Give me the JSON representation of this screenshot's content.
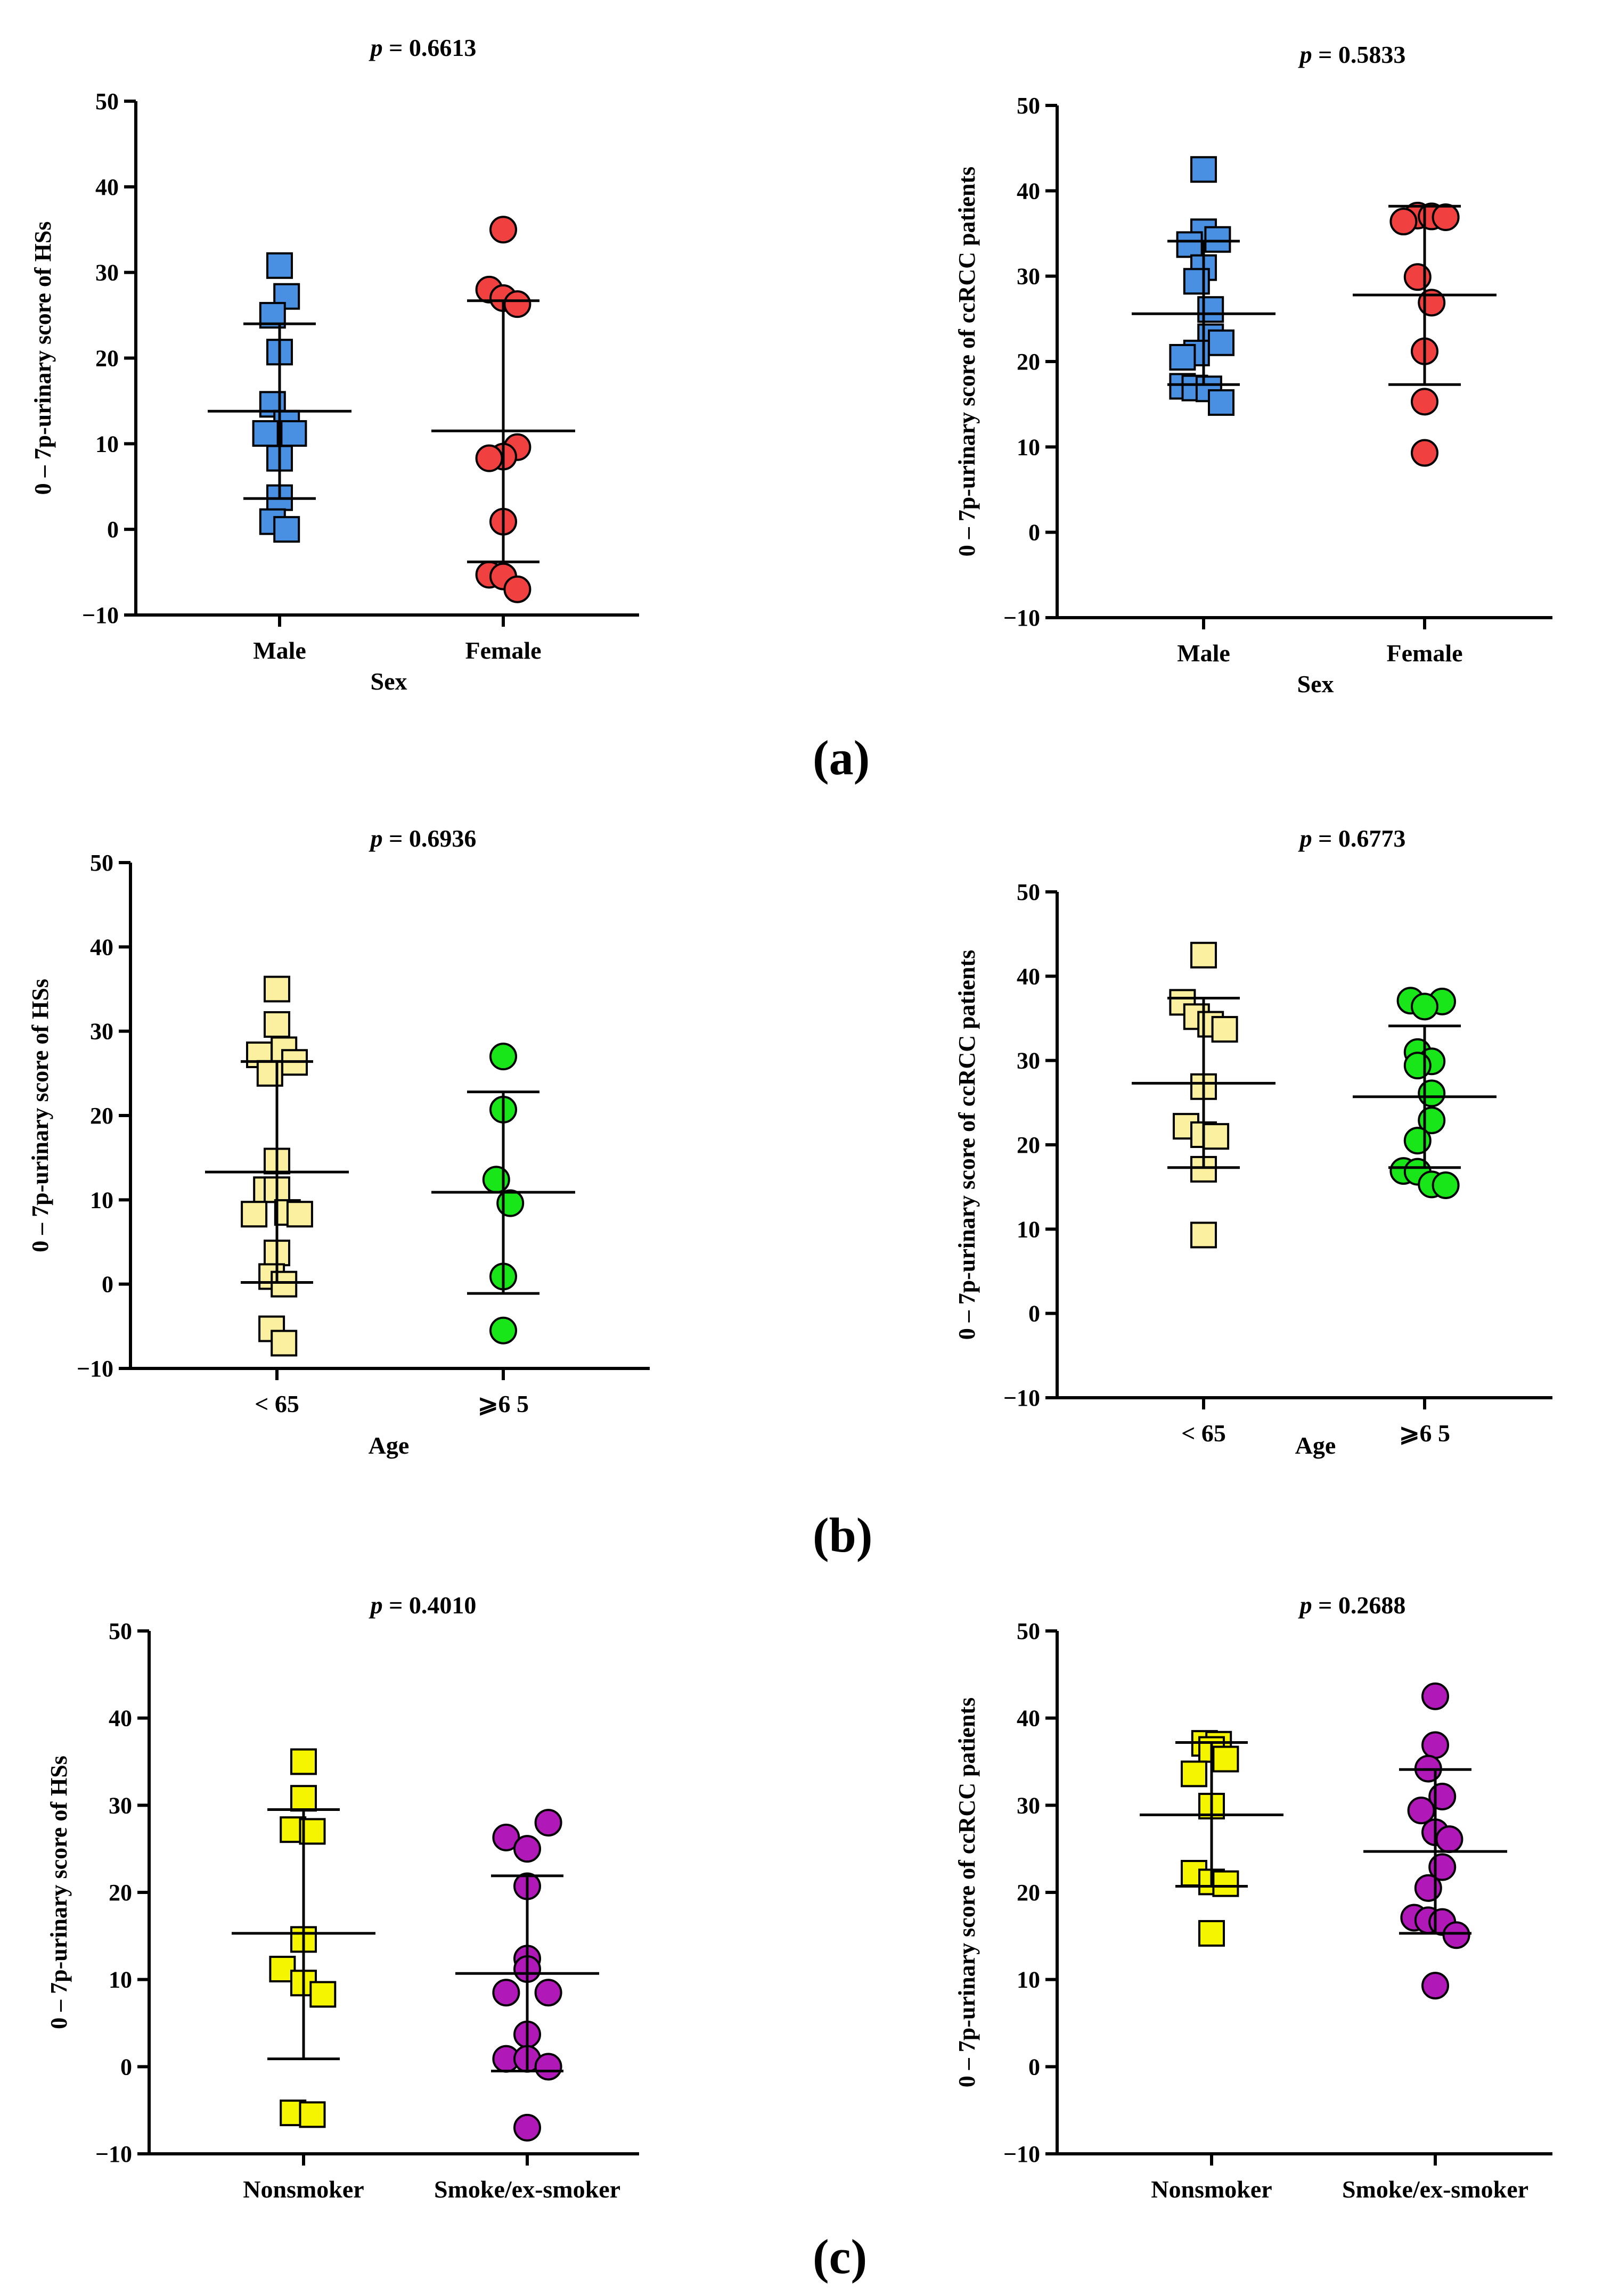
{
  "figure": {
    "panel_labels": [
      "(a)",
      "(b)",
      "(c)"
    ]
  },
  "chart_data": [
    {
      "type": "scatter",
      "panel": "a-left",
      "title": "p = 0.6613",
      "title_p": "p",
      "title_value": "= 0.6613",
      "xlabel": "Sex",
      "ylabel": "0 – 7p-urinary score of HSs",
      "ylim": [
        -10,
        50
      ],
      "yticks": [
        -10,
        0,
        10,
        20,
        30,
        40,
        50
      ],
      "ytick_labels": [
        "−10",
        "0",
        "10",
        "20",
        "30",
        "40",
        "50"
      ],
      "categories": [
        "Male",
        "Female"
      ],
      "series": [
        {
          "name": "Male",
          "marker": "square",
          "color": "#4a90e2",
          "values": [
            30.8,
            27.2,
            25.0,
            20.7,
            14.6,
            12.4,
            11.2,
            11.2,
            8.3,
            3.7,
            0.9,
            0.0
          ],
          "offsets": [
            0,
            0.4,
            -0.4,
            0,
            -0.4,
            0.4,
            -0.8,
            0.8,
            0,
            0,
            -0.4,
            0.4
          ],
          "mean": 13.8,
          "sd_low": 3.6,
          "sd_high": 24.0
        },
        {
          "name": "Female",
          "marker": "circle",
          "color": "#f04040",
          "values": [
            35.0,
            28.0,
            27.0,
            26.3,
            9.6,
            8.5,
            8.3,
            0.9,
            -5.3,
            -5.5,
            -7.0
          ],
          "offsets": [
            0,
            -0.8,
            0,
            0.8,
            0.8,
            0,
            -0.8,
            0,
            -0.8,
            0,
            0.8
          ],
          "mean": 11.5,
          "sd_low": -3.8,
          "sd_high": 26.7
        }
      ]
    },
    {
      "type": "scatter",
      "panel": "a-right",
      "title": "p = 0.5833",
      "title_p": "p",
      "title_value": "= 0.5833",
      "xlabel": "Sex",
      "ylabel": "0 – 7p-urinary score of ccRCC patients",
      "ylim": [
        -10,
        50
      ],
      "yticks": [
        -10,
        0,
        10,
        20,
        30,
        40,
        50
      ],
      "ytick_labels": [
        "−10",
        "0",
        "10",
        "20",
        "30",
        "40",
        "50"
      ],
      "categories": [
        "Male",
        "Female"
      ],
      "series": [
        {
          "name": "Male",
          "marker": "square",
          "color": "#4a90e2",
          "values": [
            42.5,
            35.2,
            34.3,
            33.7,
            31.0,
            29.4,
            26.1,
            22.9,
            22.2,
            21.0,
            20.5,
            17.1,
            16.9,
            16.8,
            15.2
          ],
          "offsets": [
            0,
            0,
            0.8,
            -0.8,
            0,
            -0.4,
            0.4,
            0.4,
            1.0,
            -0.4,
            -1.2,
            -1.2,
            -0.5,
            0.3,
            1.0
          ],
          "mean": 25.6,
          "sd_low": 17.3,
          "sd_high": 34.1
        },
        {
          "name": "Female",
          "marker": "circle",
          "color": "#f04040",
          "values": [
            37.1,
            37.0,
            36.9,
            36.4,
            29.9,
            26.9,
            21.2,
            15.3,
            9.3
          ],
          "offsets": [
            -0.4,
            0.4,
            1.2,
            -1.2,
            -0.4,
            0.4,
            0,
            0,
            0
          ],
          "mean": 27.8,
          "sd_low": 17.3,
          "sd_high": 38.2
        }
      ]
    },
    {
      "type": "scatter",
      "panel": "b-left",
      "title": "p = 0.6936",
      "title_p": "p",
      "title_value": "= 0.6936",
      "xlabel": "Age",
      "ylabel": "0 – 7p-urinary score of HSs",
      "ylim": [
        -10,
        50
      ],
      "yticks": [
        -10,
        0,
        10,
        20,
        30,
        40,
        50
      ],
      "ytick_labels": [
        "−10",
        "0",
        "10",
        "20",
        "30",
        "40",
        "50"
      ],
      "categories": [
        "< 65",
        "⩾6 5"
      ],
      "series": [
        {
          "name": "< 65",
          "marker": "square",
          "color": "#faf0a0",
          "values": [
            35.0,
            30.8,
            27.8,
            27.2,
            26.3,
            25.0,
            14.6,
            11.2,
            11.2,
            8.5,
            8.3,
            8.3,
            3.7,
            0.9,
            0.0,
            -5.3,
            -7.0
          ],
          "offsets": [
            0,
            0,
            0.4,
            -1.0,
            1.0,
            -0.4,
            0,
            -0.6,
            0,
            0.6,
            -1.3,
            1.3,
            0,
            -0.3,
            0.4,
            -0.3,
            0.4
          ],
          "mean": 13.3,
          "sd_low": 0.2,
          "sd_high": 26.4
        },
        {
          "name": "⩾6 5",
          "marker": "circle",
          "color": "#19e619",
          "values": [
            27.0,
            20.7,
            12.4,
            9.6,
            0.9,
            -5.5
          ],
          "offsets": [
            0,
            0,
            -0.4,
            0.4,
            0,
            0
          ],
          "mean": 10.9,
          "sd_low": -1.1,
          "sd_high": 22.8
        }
      ]
    },
    {
      "type": "scatter",
      "panel": "b-right",
      "title": "p = 0.6773",
      "title_p": "p",
      "title_value": "= 0.6773",
      "xlabel": "Age",
      "ylabel": "0 – 7p-urinary score of ccRCC patients",
      "ylim": [
        -10,
        50
      ],
      "yticks": [
        -10,
        0,
        10,
        20,
        30,
        40,
        50
      ],
      "ytick_labels": [
        "−10",
        "0",
        "10",
        "20",
        "30",
        "40",
        "50"
      ],
      "categories": [
        "< 65",
        "⩾6 5"
      ],
      "series": [
        {
          "name": "< 65",
          "marker": "square",
          "color": "#faf0a0",
          "values": [
            42.5,
            36.9,
            35.2,
            34.3,
            33.7,
            26.9,
            22.2,
            21.2,
            21.0,
            17.1,
            9.3
          ],
          "offsets": [
            0,
            -1.2,
            -0.4,
            0.4,
            1.2,
            0,
            -1.0,
            0,
            0.7,
            0,
            0
          ],
          "mean": 27.3,
          "sd_low": 17.3,
          "sd_high": 37.4
        },
        {
          "name": "⩾6 5",
          "marker": "circle",
          "color": "#19e619",
          "values": [
            37.1,
            37.0,
            36.4,
            31.0,
            29.9,
            29.4,
            26.1,
            22.9,
            20.5,
            16.9,
            16.8,
            15.3,
            15.2
          ],
          "offsets": [
            -0.8,
            1.0,
            0,
            -0.4,
            0.4,
            -0.4,
            0.4,
            0.4,
            -0.4,
            -1.2,
            -0.4,
            0.4,
            1.2
          ],
          "mean": 25.7,
          "sd_low": 17.3,
          "sd_high": 34.1
        }
      ]
    },
    {
      "type": "scatter",
      "panel": "c-left",
      "title": "p = 0.4010",
      "title_p": "p",
      "title_value": "= 0.4010",
      "xlabel": "",
      "ylabel": "0 – 7p-urinary score of HSs",
      "ylim": [
        -10,
        50
      ],
      "yticks": [
        -10,
        0,
        10,
        20,
        30,
        40,
        50
      ],
      "ytick_labels": [
        "−10",
        "0",
        "10",
        "20",
        "30",
        "40",
        "50"
      ],
      "categories": [
        "Nonsmoker",
        "Smoke/ex-smoker"
      ],
      "series": [
        {
          "name": "Nonsmoker",
          "marker": "square",
          "color": "#f5f500",
          "values": [
            35.0,
            30.8,
            27.2,
            27.0,
            14.6,
            11.2,
            9.6,
            8.3,
            -5.3,
            -5.5
          ],
          "offsets": [
            0,
            0,
            -0.6,
            0.5,
            0,
            -1.2,
            0,
            1.1,
            -0.6,
            0.5
          ],
          "mean": 15.3,
          "sd_low": 0.9,
          "sd_high": 29.5
        },
        {
          "name": "Smoke/ex-smoker",
          "marker": "circle",
          "color": "#b019b8",
          "values": [
            28.0,
            26.3,
            25.0,
            20.7,
            12.4,
            11.2,
            8.5,
            8.5,
            3.7,
            0.9,
            0.9,
            0.0,
            -7.0
          ],
          "offsets": [
            1.2,
            -1.2,
            0,
            0,
            0,
            0,
            -1.2,
            1.2,
            0,
            -1.2,
            0,
            1.2,
            0
          ],
          "mean": 10.7,
          "sd_low": -0.5,
          "sd_high": 21.9
        }
      ]
    },
    {
      "type": "scatter",
      "panel": "c-right",
      "title": "p = 0.2688",
      "title_p": "p",
      "title_value": "= 0.2688",
      "xlabel": "",
      "ylabel": "0 – 7p-urinary score of ccRCC patients",
      "ylim": [
        -10,
        50
      ],
      "yticks": [
        -10,
        0,
        10,
        20,
        30,
        40,
        50
      ],
      "ytick_labels": [
        "−10",
        "0",
        "10",
        "20",
        "30",
        "40",
        "50"
      ],
      "categories": [
        "Nonsmoker",
        "Smoke/ex-smoker"
      ],
      "series": [
        {
          "name": "Nonsmoker",
          "marker": "square",
          "color": "#f5f500",
          "values": [
            37.1,
            37.0,
            36.4,
            35.3,
            33.6,
            29.9,
            22.2,
            21.2,
            21.0,
            15.3
          ],
          "offsets": [
            -0.4,
            0.4,
            0,
            0.8,
            -1.0,
            0,
            -1.0,
            0,
            0.8,
            0
          ],
          "mean": 28.9,
          "sd_low": 20.7,
          "sd_high": 37.2
        },
        {
          "name": "Smoke/ex-smoker",
          "marker": "circle",
          "color": "#b019b8",
          "values": [
            42.5,
            36.9,
            34.2,
            31.0,
            29.4,
            26.9,
            26.1,
            22.9,
            20.5,
            17.1,
            16.8,
            16.6,
            15.1,
            9.3
          ],
          "offsets": [
            0,
            0,
            -0.4,
            0.4,
            -0.8,
            0,
            0.8,
            0.4,
            -0.4,
            -1.2,
            -0.4,
            0.4,
            1.2,
            0
          ],
          "mean": 24.7,
          "sd_low": 15.3,
          "sd_high": 34.1
        }
      ]
    }
  ]
}
